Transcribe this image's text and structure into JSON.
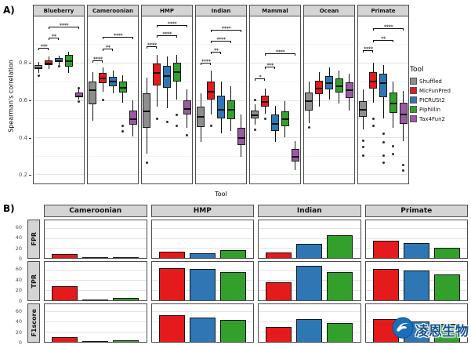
{
  "panel_a_label": "A)",
  "panel_b_label": "B)",
  "watermark": {
    "text": "凌恩生物"
  },
  "chart_data": [
    {
      "id": "spearman_boxplots",
      "type": "boxplot",
      "ylabel": "Spearman's correlation",
      "xlabel": "Tool",
      "ylim": [
        0.15,
        1.05
      ],
      "yticks": [
        0.2,
        0.4,
        0.6,
        0.8
      ],
      "yticks_minor": [
        0.3,
        0.5,
        0.7,
        0.9
      ],
      "grid": true,
      "legend": {
        "title": "Tool",
        "position": "right",
        "items": [
          {
            "label": "Shuffled",
            "color": "#8e8e8e"
          },
          {
            "label": "MicFunPred",
            "color": "#e41a1c"
          },
          {
            "label": "PICRUSt2",
            "color": "#2e77b4"
          },
          {
            "label": "Piphillin",
            "color": "#33a02c"
          },
          {
            "label": "Tax4Fun2",
            "color": "#985ba1"
          }
        ]
      },
      "facets": [
        {
          "name": "Blueberry",
          "boxes": [
            {
              "tool": "Shuffled",
              "q1": 0.765,
              "med": 0.775,
              "q3": 0.79,
              "lo": 0.745,
              "hi": 0.805,
              "out": [
                0.73
              ]
            },
            {
              "tool": "MicFunPred",
              "q1": 0.79,
              "med": 0.8,
              "q3": 0.815,
              "lo": 0.765,
              "hi": 0.835,
              "out": []
            },
            {
              "tool": "PICRUSt2",
              "q1": 0.805,
              "med": 0.815,
              "q3": 0.825,
              "lo": 0.79,
              "hi": 0.84,
              "out": [
                0.78
              ]
            },
            {
              "tool": "Piphillin",
              "q1": 0.78,
              "med": 0.815,
              "q3": 0.845,
              "lo": 0.745,
              "hi": 0.86,
              "out": []
            },
            {
              "tool": "Tax4Fun2",
              "q1": 0.615,
              "med": 0.625,
              "q3": 0.64,
              "lo": 0.6,
              "hi": 0.655,
              "out": [
                0.59,
                0.665
              ]
            }
          ],
          "brackets": [
            {
              "a": 0,
              "b": 1,
              "label": "***",
              "y": 0.88
            },
            {
              "a": 1,
              "b": 2,
              "label": "**",
              "y": 0.935
            },
            {
              "a": 1,
              "b": 4,
              "label": "****",
              "y": 0.995
            }
          ]
        },
        {
          "name": "Cameroonian",
          "boxes": [
            {
              "tool": "Shuffled",
              "q1": 0.575,
              "med": 0.655,
              "q3": 0.7,
              "lo": 0.49,
              "hi": 0.75,
              "out": []
            },
            {
              "tool": "MicFunPred",
              "q1": 0.69,
              "med": 0.72,
              "q3": 0.745,
              "lo": 0.645,
              "hi": 0.775,
              "out": [
                0.6
              ]
            },
            {
              "tool": "PICRUSt2",
              "q1": 0.675,
              "med": 0.705,
              "q3": 0.725,
              "lo": 0.635,
              "hi": 0.76,
              "out": []
            },
            {
              "tool": "Piphillin",
              "q1": 0.64,
              "med": 0.67,
              "q3": 0.7,
              "lo": 0.585,
              "hi": 0.735,
              "out": [
                0.46,
                0.43
              ]
            },
            {
              "tool": "Tax4Fun2",
              "q1": 0.465,
              "med": 0.5,
              "q3": 0.545,
              "lo": 0.405,
              "hi": 0.6,
              "out": []
            }
          ],
          "brackets": [
            {
              "a": 0,
              "b": 1,
              "label": "****",
              "y": 0.815
            },
            {
              "a": 1,
              "b": 2,
              "label": "**",
              "y": 0.875
            },
            {
              "a": 1,
              "b": 4,
              "label": "****",
              "y": 0.94
            }
          ]
        },
        {
          "name": "HMP",
          "boxes": [
            {
              "tool": "Shuffled",
              "q1": 0.45,
              "med": 0.545,
              "q3": 0.635,
              "lo": 0.31,
              "hi": 0.72,
              "out": [
                0.26
              ]
            },
            {
              "tool": "MicFunPred",
              "q1": 0.68,
              "med": 0.75,
              "q3": 0.795,
              "lo": 0.565,
              "hi": 0.845,
              "out": [
                0.5
              ]
            },
            {
              "tool": "PICRUSt2",
              "q1": 0.665,
              "med": 0.735,
              "q3": 0.785,
              "lo": 0.555,
              "hi": 0.835,
              "out": [
                0.48
              ]
            },
            {
              "tool": "Piphillin",
              "q1": 0.7,
              "med": 0.755,
              "q3": 0.8,
              "lo": 0.6,
              "hi": 0.845,
              "out": [
                0.52,
                0.46
              ]
            },
            {
              "tool": "Tax4Fun2",
              "q1": 0.52,
              "med": 0.555,
              "q3": 0.6,
              "lo": 0.45,
              "hi": 0.655,
              "out": [
                0.41
              ]
            }
          ],
          "brackets": [
            {
              "a": 0,
              "b": 1,
              "label": "****",
              "y": 0.89
            },
            {
              "a": 1,
              "b": 3,
              "label": "****",
              "y": 0.95
            },
            {
              "a": 1,
              "b": 4,
              "label": "****",
              "y": 1.005
            }
          ]
        },
        {
          "name": "Indian",
          "boxes": [
            {
              "tool": "Shuffled",
              "q1": 0.455,
              "med": 0.515,
              "q3": 0.565,
              "lo": 0.375,
              "hi": 0.635,
              "out": []
            },
            {
              "tool": "MicFunPred",
              "q1": 0.6,
              "med": 0.65,
              "q3": 0.7,
              "lo": 0.52,
              "hi": 0.76,
              "out": [
                0.46
              ]
            },
            {
              "tool": "PICRUSt2",
              "q1": 0.5,
              "med": 0.55,
              "q3": 0.625,
              "lo": 0.42,
              "hi": 0.7,
              "out": []
            },
            {
              "tool": "Piphillin",
              "q1": 0.495,
              "med": 0.55,
              "q3": 0.6,
              "lo": 0.435,
              "hi": 0.675,
              "out": []
            },
            {
              "tool": "Tax4Fun2",
              "q1": 0.355,
              "med": 0.4,
              "q3": 0.45,
              "lo": 0.295,
              "hi": 0.52,
              "out": []
            }
          ],
          "brackets": [
            {
              "a": 0,
              "b": 1,
              "label": "****",
              "y": 0.8
            },
            {
              "a": 1,
              "b": 2,
              "label": "**",
              "y": 0.86
            },
            {
              "a": 1,
              "b": 3,
              "label": "****",
              "y": 0.92
            },
            {
              "a": 1,
              "b": 4,
              "label": "****",
              "y": 0.98
            }
          ]
        },
        {
          "name": "Mammal",
          "boxes": [
            {
              "tool": "Shuffled",
              "q1": 0.5,
              "med": 0.52,
              "q3": 0.545,
              "lo": 0.465,
              "hi": 0.575,
              "out": [
                0.6,
                0.44
              ]
            },
            {
              "tool": "MicFunPred",
              "q1": 0.565,
              "med": 0.595,
              "q3": 0.625,
              "lo": 0.525,
              "hi": 0.66,
              "out": [
                0.5
              ]
            },
            {
              "tool": "PICRUSt2",
              "q1": 0.435,
              "med": 0.475,
              "q3": 0.52,
              "lo": 0.375,
              "hi": 0.57,
              "out": []
            },
            {
              "tool": "Piphillin",
              "q1": 0.46,
              "med": 0.5,
              "q3": 0.54,
              "lo": 0.4,
              "hi": 0.595,
              "out": []
            },
            {
              "tool": "Tax4Fun2",
              "q1": 0.27,
              "med": 0.3,
              "q3": 0.335,
              "lo": 0.22,
              "hi": 0.38,
              "out": []
            }
          ],
          "brackets": [
            {
              "a": 0,
              "b": 1,
              "label": "*",
              "y": 0.715
            },
            {
              "a": 1,
              "b": 2,
              "label": "***",
              "y": 0.78
            },
            {
              "a": 1,
              "b": 4,
              "label": "****",
              "y": 0.85
            }
          ]
        },
        {
          "name": "Ocean",
          "boxes": [
            {
              "tool": "Shuffled",
              "q1": 0.545,
              "med": 0.6,
              "q3": 0.64,
              "lo": 0.475,
              "hi": 0.7,
              "out": [
                0.45
              ]
            },
            {
              "tool": "MicFunPred",
              "q1": 0.63,
              "med": 0.665,
              "q3": 0.705,
              "lo": 0.565,
              "hi": 0.75,
              "out": []
            },
            {
              "tool": "PICRUSt2",
              "q1": 0.655,
              "med": 0.695,
              "q3": 0.73,
              "lo": 0.6,
              "hi": 0.775,
              "out": []
            },
            {
              "tool": "Piphillin",
              "q1": 0.64,
              "med": 0.68,
              "q3": 0.715,
              "lo": 0.58,
              "hi": 0.76,
              "out": []
            },
            {
              "tool": "Tax4Fun2",
              "q1": 0.61,
              "med": 0.655,
              "q3": 0.695,
              "lo": 0.545,
              "hi": 0.74,
              "out": []
            }
          ],
          "brackets": []
        },
        {
          "name": "Primate",
          "boxes": [
            {
              "tool": "Shuffled",
              "q1": 0.51,
              "med": 0.55,
              "q3": 0.595,
              "lo": 0.44,
              "hi": 0.655,
              "out": [
                0.38,
                0.345,
                0.3
              ]
            },
            {
              "tool": "MicFunPred",
              "q1": 0.66,
              "med": 0.705,
              "q3": 0.75,
              "lo": 0.585,
              "hi": 0.8,
              "out": [
                0.5,
                0.46
              ]
            },
            {
              "tool": "PICRUSt2",
              "q1": 0.615,
              "med": 0.695,
              "q3": 0.74,
              "lo": 0.5,
              "hi": 0.79,
              "out": [
                0.42,
                0.37,
                0.3,
                0.26
              ]
            },
            {
              "tool": "Piphillin",
              "q1": 0.53,
              "med": 0.585,
              "q3": 0.64,
              "lo": 0.45,
              "hi": 0.7,
              "out": [
                0.35,
                0.31
              ]
            },
            {
              "tool": "Tax4Fun2",
              "q1": 0.47,
              "med": 0.525,
              "q3": 0.585,
              "lo": 0.38,
              "hi": 0.65,
              "out": [
                0.25,
                0.22
              ]
            }
          ],
          "brackets": [
            {
              "a": 0,
              "b": 1,
              "label": "****",
              "y": 0.87
            },
            {
              "a": 1,
              "b": 3,
              "label": "**",
              "y": 0.925
            },
            {
              "a": 1,
              "b": 4,
              "label": "****",
              "y": 0.985
            }
          ]
        }
      ]
    },
    {
      "id": "metric_bars",
      "type": "bar",
      "columns": [
        "Cameroonian",
        "HMP",
        "Indian",
        "Primate"
      ],
      "ylim": [
        0,
        75
      ],
      "yticks": [
        0,
        20,
        40,
        60
      ],
      "grid": true,
      "series": [
        {
          "name": "MicFunPred",
          "color": "#e41a1c"
        },
        {
          "name": "PICRUSt2",
          "color": "#2e77b4"
        },
        {
          "name": "Piphillin",
          "color": "#33a02c"
        }
      ],
      "rows": [
        {
          "label": "FPR",
          "cells": [
            [
              8,
              0.8,
              2
            ],
            [
              13,
              10,
              16
            ],
            [
              12,
              28,
              45
            ],
            [
              35,
              30,
              20
            ]
          ]
        },
        {
          "label": "TPR",
          "cells": [
            [
              28,
              0.8,
              4
            ],
            [
              63,
              62,
              55
            ],
            [
              35,
              68,
              55
            ],
            [
              62,
              58,
              50
            ]
          ]
        },
        {
          "label": "F1score",
          "cells": [
            [
              9,
              0.8,
              3
            ],
            [
              52,
              48,
              43
            ],
            [
              30,
              45,
              38
            ],
            [
              45,
              40,
              35
            ]
          ]
        }
      ]
    }
  ]
}
